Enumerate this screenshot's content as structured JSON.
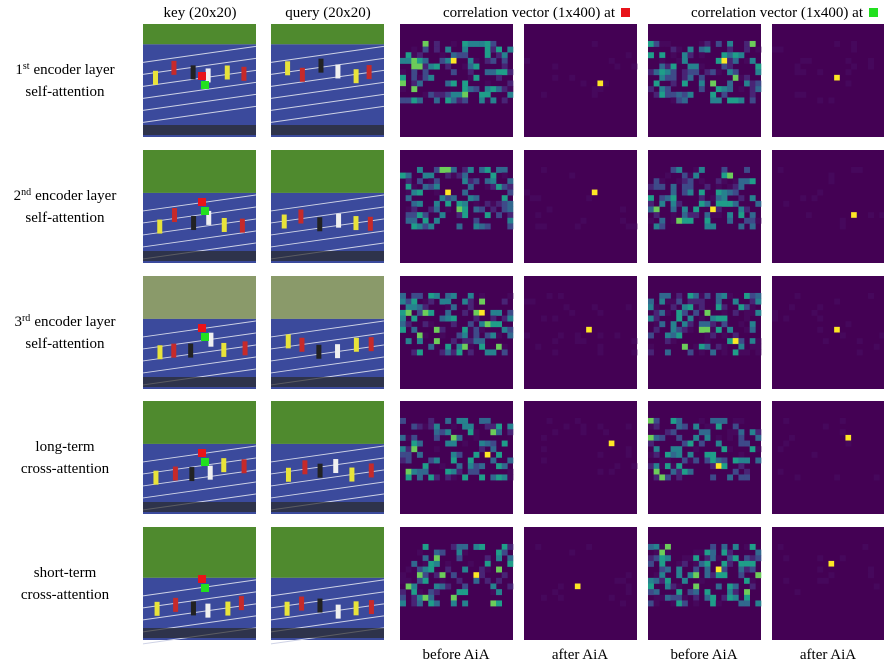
{
  "columns": {
    "key": "key (20x20)",
    "query": "query (20x20)",
    "corr_red": "correlation vector (1x400) at",
    "corr_green": "correlation vector (1x400) at"
  },
  "rows": [
    {
      "ordinal": "1",
      "sup": "st",
      "line1": "encoder layer",
      "line2": "self-attention"
    },
    {
      "ordinal": "2",
      "sup": "nd",
      "line1": "encoder layer",
      "line2": "self-attention"
    },
    {
      "ordinal": "3",
      "sup": "rd",
      "line1": "encoder layer",
      "line2": "self-attention"
    },
    {
      "line1": "long-term",
      "line2": "cross-attention"
    },
    {
      "line1": "short-term",
      "line2": "cross-attention"
    }
  ],
  "footer": [
    "before AiA",
    "after AiA",
    "before AiA",
    "after AiA"
  ]
}
